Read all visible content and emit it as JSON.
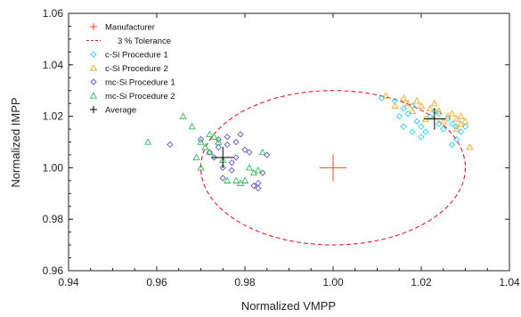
{
  "chart_data": {
    "type": "scatter",
    "xlabel": "Normalized VMPP",
    "ylabel": "Normalized IMPP",
    "xlim": [
      0.94,
      1.04
    ],
    "ylim": [
      0.96,
      1.06
    ],
    "xticks": [
      "0.94",
      "0.96",
      "0.98",
      "1.00",
      "1.02",
      "1.04"
    ],
    "yticks": [
      "0.96",
      "0.98",
      "1.00",
      "1.02",
      "1.04",
      "1.06"
    ],
    "grid": false,
    "legend_position": "top-left",
    "colors": {
      "manufacturer": "#ff4422",
      "tolerance": "#dd2233",
      "csi1": "#33ccee",
      "csi2": "#eeaa22",
      "mcsi1": "#6655cc",
      "mcsi2": "#33bb55",
      "average": "#000000"
    },
    "series": [
      {
        "key": "manufacturer",
        "name": "Manufacturer",
        "marker": "plus",
        "points": [
          [
            1.0,
            1.0
          ]
        ]
      },
      {
        "key": "tolerance",
        "name": "3 % Tolerance",
        "marker": "dashed-ellipse",
        "center": [
          1.0,
          1.0
        ],
        "radius": [
          0.03,
          0.03
        ]
      },
      {
        "key": "csi1",
        "name": "c-Si Procedure 1",
        "marker": "diamond",
        "points": [
          [
            1.011,
            1.027
          ],
          [
            1.014,
            1.026
          ],
          [
            1.016,
            1.023
          ],
          [
            1.017,
            1.021
          ],
          [
            1.018,
            1.024
          ],
          [
            1.019,
            1.018
          ],
          [
            1.02,
            1.016
          ],
          [
            1.021,
            1.014
          ],
          [
            1.022,
            1.02
          ],
          [
            1.023,
            1.022
          ],
          [
            1.024,
            1.017
          ],
          [
            1.025,
            1.015
          ],
          [
            1.026,
            1.019
          ],
          [
            1.027,
            1.017
          ],
          [
            1.028,
            1.016
          ],
          [
            1.029,
            1.014
          ],
          [
            1.028,
            1.011
          ],
          [
            1.027,
            1.009
          ],
          [
            1.018,
            1.014
          ],
          [
            1.016,
            1.016
          ],
          [
            1.015,
            1.02
          ],
          [
            1.024,
            1.021
          ],
          [
            1.03,
            1.016
          ],
          [
            1.02,
            1.012
          ]
        ]
      },
      {
        "key": "csi2",
        "name": "c-Si Procedure 2",
        "marker": "triangle",
        "points": [
          [
            1.012,
            1.028
          ],
          [
            1.016,
            1.027
          ],
          [
            1.017,
            1.025
          ],
          [
            1.019,
            1.026
          ],
          [
            1.02,
            1.024
          ],
          [
            1.022,
            1.023
          ],
          [
            1.023,
            1.025
          ],
          [
            1.024,
            1.022
          ],
          [
            1.026,
            1.02
          ],
          [
            1.027,
            1.021
          ],
          [
            1.028,
            1.019
          ],
          [
            1.029,
            1.02
          ],
          [
            1.03,
            1.018
          ],
          [
            1.031,
            1.008
          ],
          [
            1.018,
            1.022
          ],
          [
            1.021,
            1.019
          ],
          [
            1.025,
            1.018
          ],
          [
            1.028,
            1.015
          ],
          [
            1.014,
            1.024
          ],
          [
            1.029,
            1.017
          ]
        ]
      },
      {
        "key": "mcsi1",
        "name": "mc-Si Procedure 1",
        "marker": "diamond",
        "points": [
          [
            0.963,
            1.009
          ],
          [
            0.97,
            1.011
          ],
          [
            0.972,
            1.006
          ],
          [
            0.973,
            1.004
          ],
          [
            0.974,
            1.008
          ],
          [
            0.975,
            1.0
          ],
          [
            0.976,
            1.012
          ],
          [
            0.977,
            1.002
          ],
          [
            0.978,
            1.01
          ],
          [
            0.979,
            1.013
          ],
          [
            0.98,
            1.007
          ],
          [
            0.981,
            1.006
          ],
          [
            0.982,
            0.993
          ],
          [
            0.983,
            0.992
          ],
          [
            0.984,
            0.998
          ],
          [
            0.985,
            1.005
          ],
          [
            0.975,
            0.996
          ],
          [
            0.977,
            0.999
          ],
          [
            0.974,
            1.011
          ],
          [
            0.983,
            0.994
          ],
          [
            0.978,
            1.004
          ],
          [
            0.976,
            1.009
          ]
        ]
      },
      {
        "key": "mcsi2",
        "name": "mc-Si Procedure 2",
        "marker": "triangle",
        "points": [
          [
            0.958,
            1.01
          ],
          [
            0.966,
            1.02
          ],
          [
            0.968,
            1.016
          ],
          [
            0.97,
            1.01
          ],
          [
            0.971,
            1.008
          ],
          [
            0.972,
            1.006
          ],
          [
            0.973,
            1.012
          ],
          [
            0.974,
            1.01
          ],
          [
            0.976,
            0.995
          ],
          [
            0.978,
            0.995
          ],
          [
            0.979,
            0.994
          ],
          [
            0.98,
            0.995
          ],
          [
            0.981,
            1.0
          ],
          [
            0.982,
            0.998
          ],
          [
            0.983,
            0.999
          ],
          [
            0.984,
            1.006
          ],
          [
            0.97,
            1.0
          ],
          [
            0.972,
            1.013
          ],
          [
            0.975,
            1.003
          ],
          [
            0.969,
            1.004
          ]
        ]
      },
      {
        "key": "average",
        "name": "Average",
        "marker": "plus",
        "points": [
          [
            0.975,
            1.004
          ],
          [
            1.023,
            1.019
          ]
        ]
      }
    ]
  }
}
